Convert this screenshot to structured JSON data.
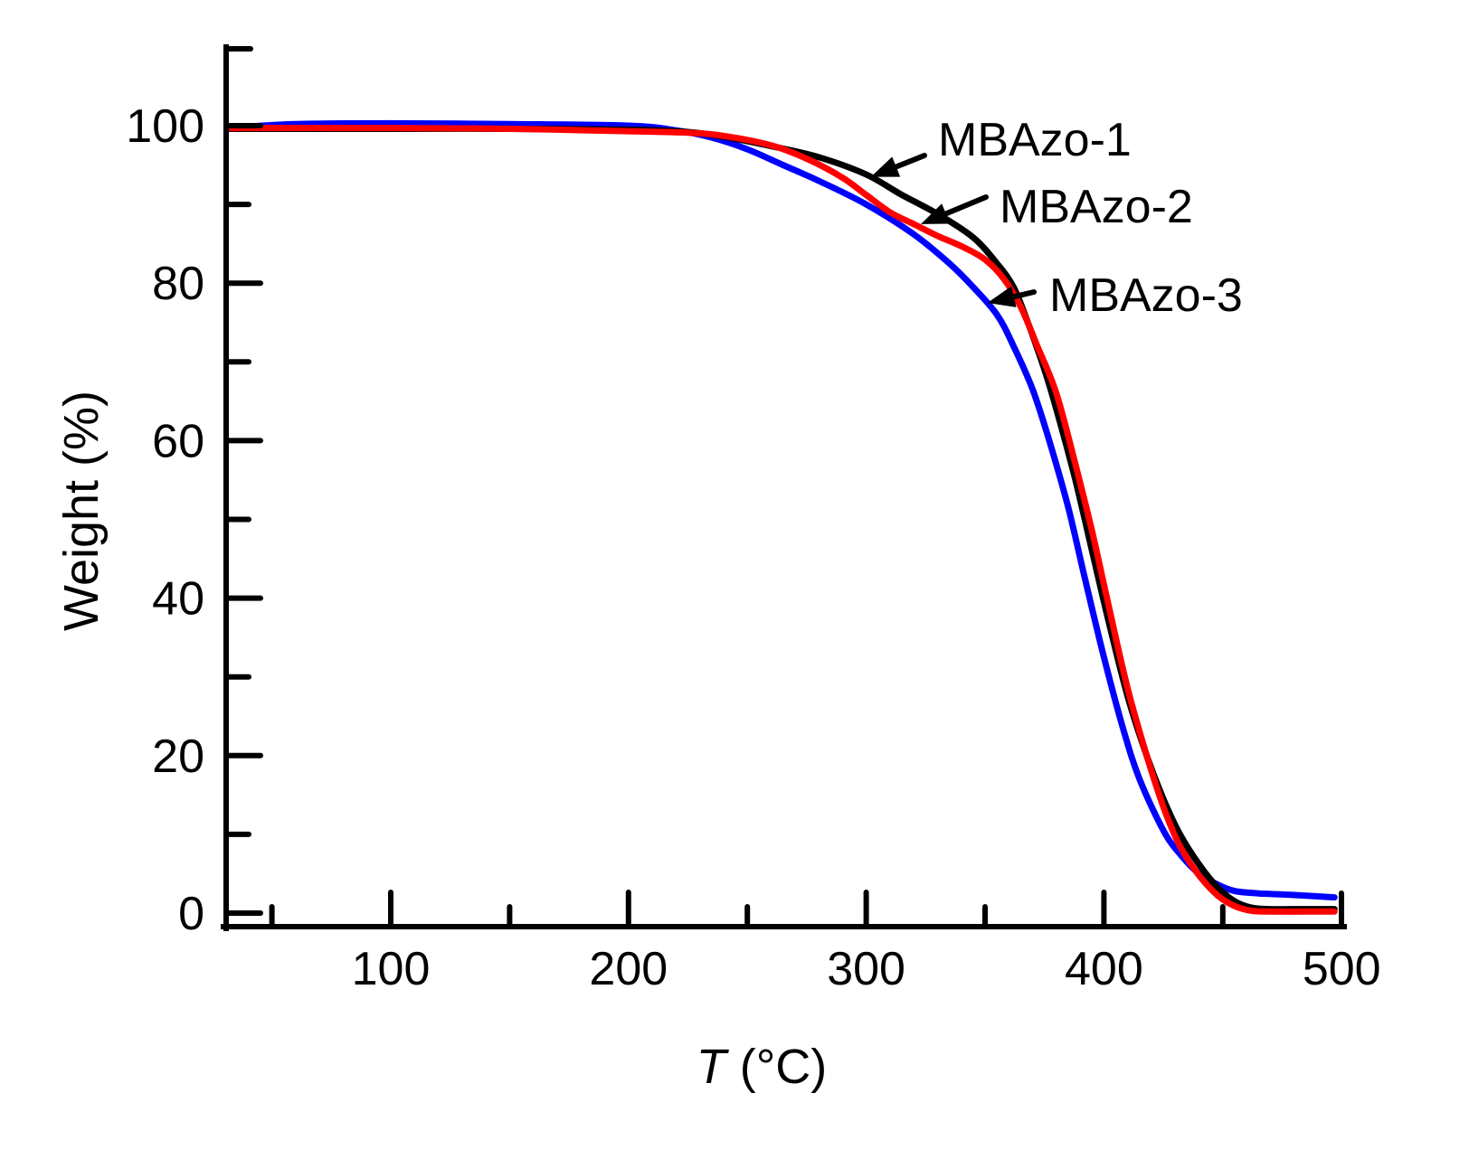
{
  "chart_data": {
    "type": "line",
    "title": "",
    "xlabel_italic": "T",
    "xlabel_rest": " (°C)",
    "xlabel": "T (°C)",
    "ylabel": "Weight (%)",
    "xlim": [
      31,
      500
    ],
    "ylim": [
      -2,
      110
    ],
    "x_major_ticks": [
      100,
      200,
      300,
      400,
      500
    ],
    "x_minor_ticks": [
      50,
      150,
      250,
      350,
      450
    ],
    "y_major_ticks": [
      0,
      20,
      40,
      60,
      80,
      100
    ],
    "y_minor_ticks": [
      10,
      30,
      50,
      70,
      90,
      110
    ],
    "x_tick_labels": [
      "100",
      "200",
      "300",
      "400",
      "500"
    ],
    "y_tick_labels": [
      "0",
      "20",
      "40",
      "60",
      "80",
      "100"
    ],
    "grid": false,
    "legend": "none",
    "series": [
      {
        "name": "MBAzo-1",
        "color": "#000000",
        "x": [
          31,
          100,
          150,
          200,
          225,
          240,
          260,
          280,
          300,
          315,
          330,
          345,
          355,
          362,
          368,
          375,
          380,
          388,
          395,
          402,
          410,
          418,
          425,
          432,
          440,
          448,
          455,
          462,
          470,
          485,
          497
        ],
        "y": [
          99.6,
          99.6,
          99.6,
          99.5,
          99.2,
          98.6,
          97.4,
          96.0,
          93.8,
          91.2,
          88.8,
          85.8,
          82.5,
          79.5,
          75.0,
          69.0,
          64.0,
          55.0,
          46.0,
          37.0,
          27.5,
          20.0,
          14.5,
          10.0,
          6.2,
          3.2,
          1.5,
          0.7,
          0.5,
          0.5,
          0.5
        ]
      },
      {
        "name": "MBAzo-2",
        "color": "#ff0000",
        "x": [
          31,
          100,
          150,
          200,
          225,
          240,
          260,
          275,
          290,
          300,
          310,
          320,
          330,
          340,
          350,
          358,
          365,
          372,
          380,
          388,
          395,
          402,
          410,
          418,
          425,
          432,
          440,
          448,
          455,
          462,
          470,
          485,
          497
        ],
        "y": [
          99.7,
          99.7,
          99.6,
          99.3,
          99.1,
          98.7,
          97.5,
          95.8,
          93.4,
          91.2,
          89.0,
          87.5,
          86.0,
          84.7,
          83.0,
          80.5,
          77.0,
          72.0,
          66.0,
          57.0,
          48.5,
          39.0,
          28.5,
          20.0,
          13.5,
          8.5,
          4.8,
          2.2,
          0.9,
          0.3,
          0.2,
          0.2,
          0.2
        ]
      },
      {
        "name": "MBAzo-3",
        "color": "#0000ff",
        "x": [
          31,
          60,
          100,
          150,
          200,
          220,
          235,
          250,
          265,
          280,
          300,
          320,
          335,
          345,
          355,
          362,
          370,
          377,
          385,
          392,
          400,
          408,
          415,
          425,
          432,
          440,
          448,
          455,
          465,
          480,
          497
        ],
        "y": [
          99.7,
          100.2,
          100.3,
          100.2,
          100.0,
          99.4,
          98.5,
          97.0,
          95.0,
          93.0,
          90.0,
          86.2,
          82.5,
          79.5,
          76.0,
          72.0,
          66.5,
          60.0,
          51.5,
          42.5,
          32.5,
          23.5,
          17.0,
          10.5,
          7.5,
          5.0,
          3.6,
          2.8,
          2.5,
          2.3,
          2.0
        ]
      }
    ],
    "annotations": [
      {
        "text": "MBAzo-1",
        "target_series": "MBAzo-1",
        "points_to": [
          302,
          93.5
        ]
      },
      {
        "text": "MBAzo-2",
        "target_series": "MBAzo-2",
        "points_to": [
          323,
          87.5
        ]
      },
      {
        "text": "MBAzo-3",
        "target_series": "MBAzo-3",
        "points_to": [
          351,
          77.5
        ]
      }
    ]
  }
}
